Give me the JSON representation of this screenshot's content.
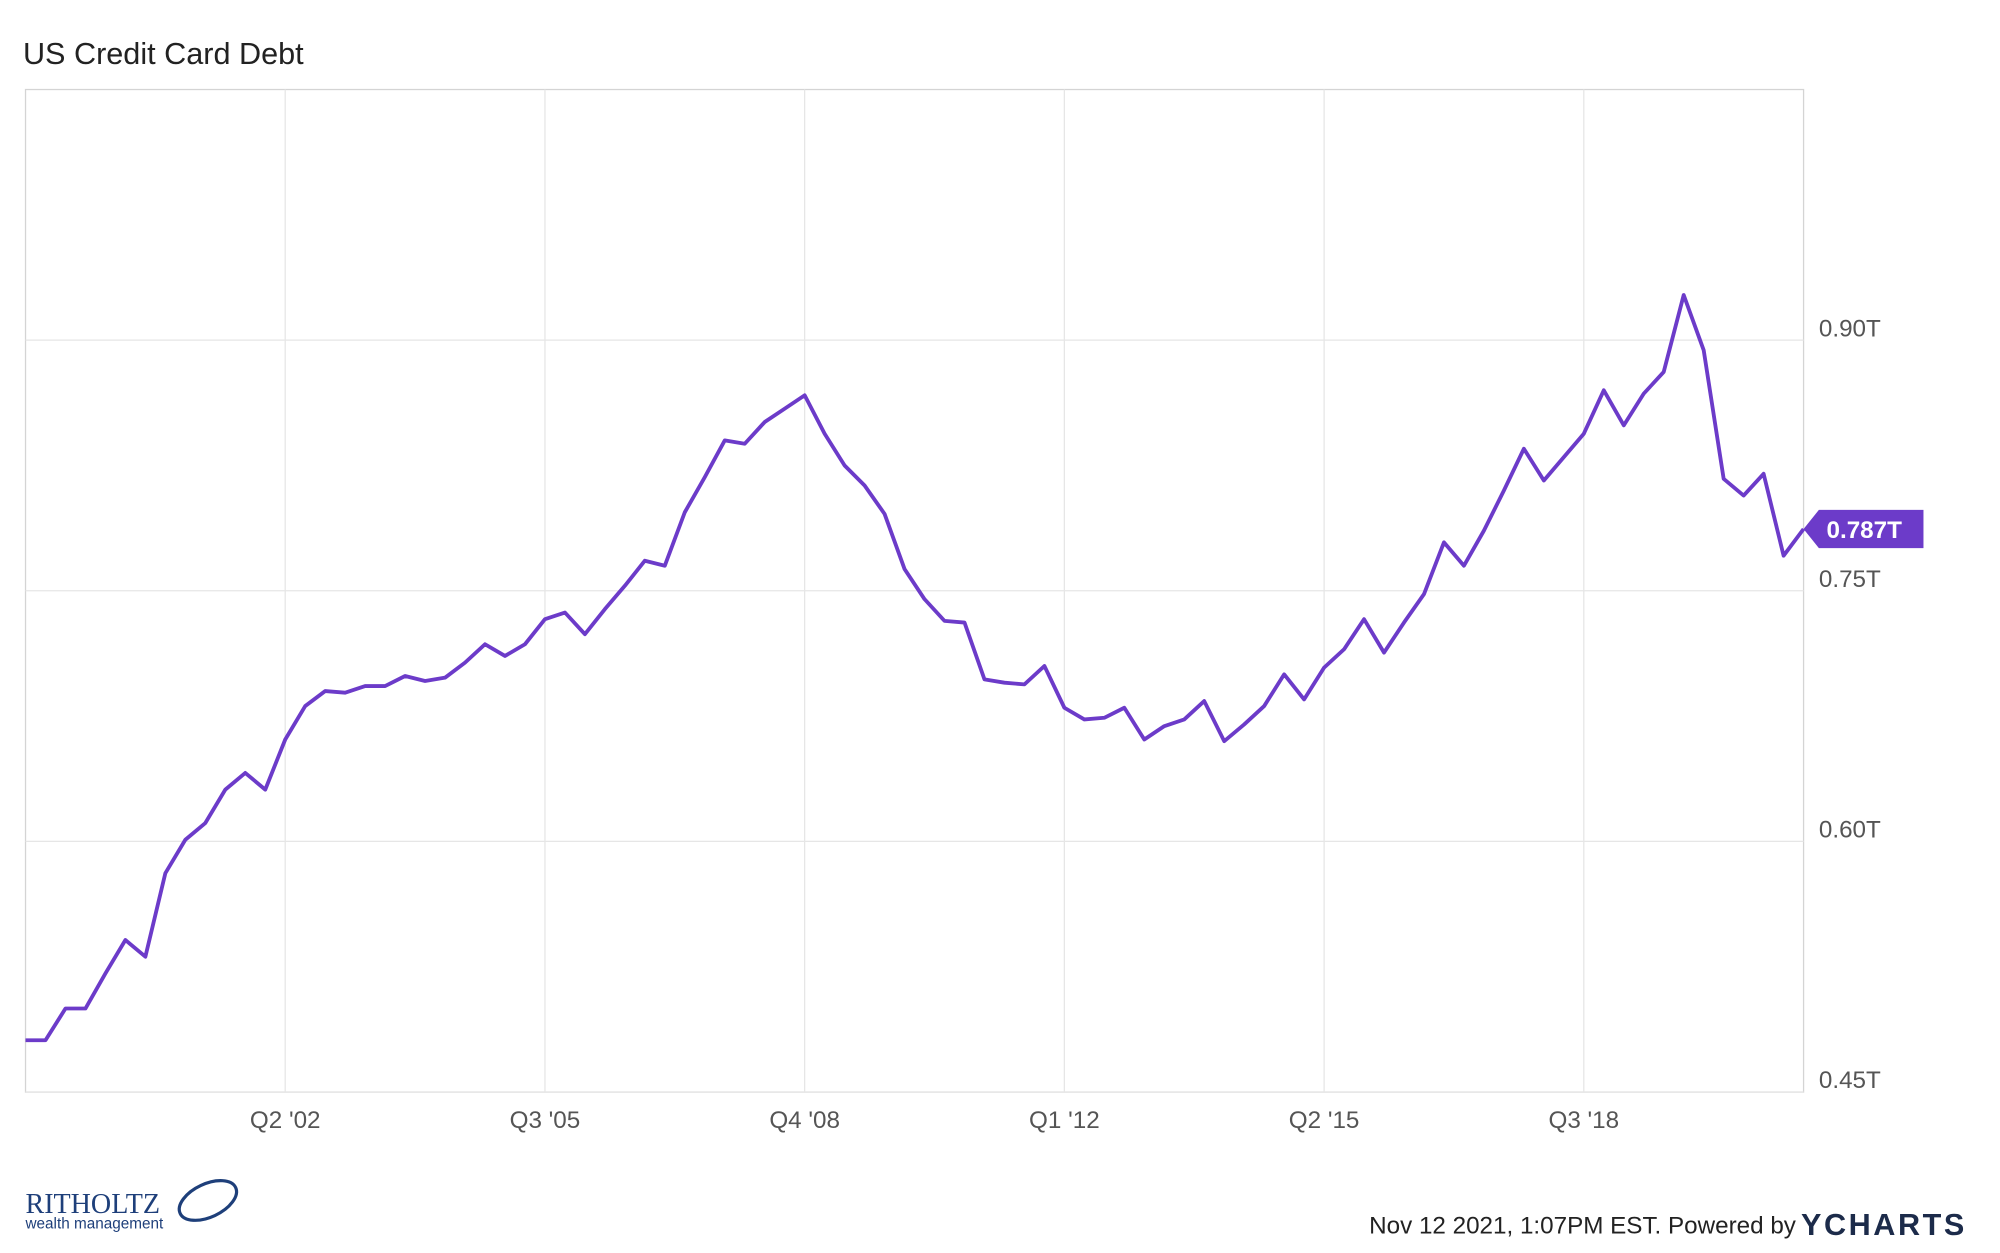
{
  "chart_data": {
    "type": "line",
    "title": "US Credit Card Debt",
    "categories": [
      null,
      null,
      null,
      null,
      null,
      null,
      null,
      null,
      null,
      null,
      null,
      null,
      null,
      "Q2 '02",
      null,
      null,
      null,
      null,
      null,
      null,
      null,
      null,
      null,
      null,
      null,
      null,
      "Q3 '05",
      null,
      null,
      null,
      null,
      null,
      null,
      null,
      null,
      null,
      null,
      null,
      null,
      "Q4 '08",
      null,
      null,
      null,
      null,
      null,
      null,
      null,
      null,
      null,
      null,
      null,
      null,
      "Q1 '12",
      null,
      null,
      null,
      null,
      null,
      null,
      null,
      null,
      null,
      null,
      null,
      null,
      "Q2 '15",
      null,
      null,
      null,
      null,
      null,
      null,
      null,
      null,
      null,
      null,
      null,
      null,
      "Q3 '18",
      null,
      null,
      null,
      null,
      null,
      null,
      null,
      null,
      null,
      null,
      null
    ],
    "series": [
      {
        "name": "US Credit Card Debt",
        "color": "#6c3bc9",
        "values": [
          0.481,
          0.481,
          0.5,
          0.5,
          0.521,
          0.541,
          0.531,
          0.581,
          0.601,
          0.611,
          0.631,
          0.641,
          0.631,
          0.661,
          0.681,
          0.69,
          0.689,
          0.693,
          0.693,
          0.699,
          0.696,
          0.698,
          0.707,
          0.718,
          0.711,
          0.718,
          0.733,
          0.737,
          0.724,
          0.739,
          0.753,
          0.768,
          0.765,
          0.797,
          0.818,
          0.84,
          0.838,
          0.851,
          0.859,
          0.867,
          0.844,
          0.825,
          0.813,
          0.796,
          0.763,
          0.745,
          0.732,
          0.731,
          0.697,
          0.695,
          0.694,
          0.705,
          0.68,
          0.673,
          0.674,
          0.68,
          0.661,
          0.669,
          0.673,
          0.684,
          0.66,
          0.67,
          0.681,
          0.7,
          0.685,
          0.704,
          0.715,
          0.733,
          0.713,
          0.731,
          0.748,
          0.779,
          0.765,
          0.786,
          0.81,
          0.835,
          0.816,
          0.83,
          0.844,
          0.87,
          0.849,
          0.868,
          0.881,
          0.927,
          0.894,
          0.817,
          0.807,
          0.82,
          0.771,
          0.787
        ],
        "value_labels": [
          null,
          null,
          null,
          null,
          null,
          null,
          null,
          null,
          null,
          null,
          null,
          null,
          null,
          null,
          null,
          null,
          null,
          null,
          null,
          null,
          null,
          null,
          null,
          null,
          null,
          null,
          null,
          null,
          null,
          null,
          null,
          null,
          null,
          null,
          null,
          null,
          null,
          null,
          null,
          null,
          null,
          null,
          null,
          null,
          null,
          null,
          null,
          null,
          null,
          null,
          null,
          null,
          null,
          null,
          null,
          null,
          null,
          null,
          null,
          null,
          null,
          null,
          null,
          null,
          null,
          null,
          null,
          null,
          null,
          null,
          null,
          null,
          null,
          null,
          null,
          null,
          null,
          null,
          null,
          null,
          null,
          null,
          null,
          null,
          null,
          null,
          null,
          null,
          null,
          "0.787T"
        ]
      }
    ],
    "ylim": [
      0.45,
      1.05
    ],
    "yticks": [
      {
        "value": 0.45,
        "label": "0.45T"
      },
      {
        "value": 0.6,
        "label": "0.60T"
      },
      {
        "value": 0.75,
        "label": "0.75T"
      },
      {
        "value": 0.9,
        "label": "0.90T"
      }
    ],
    "grid": true,
    "footer": {
      "timestamp": "Nov 12 2021, 1:07PM EST. Powered by",
      "brand": "YCHARTS",
      "logo_name": "RITHOLTZ",
      "logo_sub": "wealth management"
    }
  }
}
